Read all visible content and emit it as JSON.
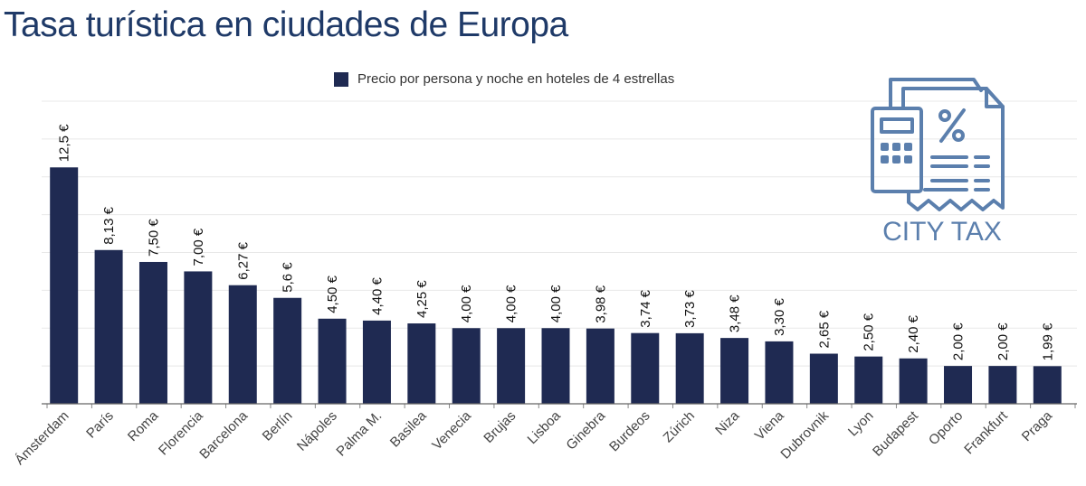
{
  "chart_data": {
    "type": "bar",
    "title": "Tasa turística en ciudades de Europa",
    "legend": "Precio por persona y noche en hoteles de 4 estrellas",
    "legend_position": "top-center",
    "categories": [
      "Ámsterdam",
      "París",
      "Roma",
      "Florencia",
      "Barcelona",
      "Berlín",
      "Nápoles",
      "Palma M.",
      "Basilea",
      "Venecia",
      "Brujas",
      "Lisboa",
      "Ginebra",
      "Burdeos",
      "Zúrich",
      "Niza",
      "Viena",
      "Dubrovnik",
      "Lyon",
      "Budapest",
      "Oporto",
      "Frankfurt",
      "Praga"
    ],
    "values": [
      12.5,
      8.13,
      7.5,
      7.0,
      6.27,
      5.6,
      4.5,
      4.4,
      4.25,
      4.0,
      4.0,
      4.0,
      3.98,
      3.74,
      3.73,
      3.48,
      3.3,
      2.65,
      2.5,
      2.4,
      2.0,
      2.0,
      1.99
    ],
    "data_labels": [
      "12,5 €",
      "8,13 €",
      "7,50 €",
      "7,00 €",
      "6,27 €",
      "5,6 €",
      "4,50 €",
      "4,40 €",
      "4,25 €",
      "4,00 €",
      "4,00 €",
      "4,00 €",
      "3,98 €",
      "3,74 €",
      "3,73 €",
      "3,48 €",
      "3,30 €",
      "2,65 €",
      "2,50 €",
      "2,40 €",
      "2,00 €",
      "2,00 €",
      "1,99 €"
    ],
    "xlabel": "",
    "ylabel": "",
    "ylim": [
      0,
      16
    ],
    "ygrid_step": 2,
    "grid": true,
    "bar_color": "#1f2a52"
  },
  "logo": {
    "text": "CITY TAX",
    "color": "#5b7fad"
  }
}
